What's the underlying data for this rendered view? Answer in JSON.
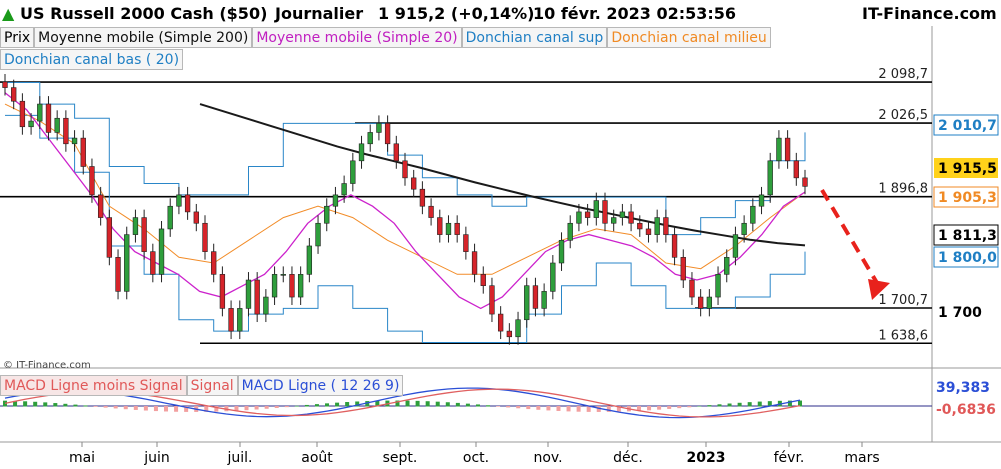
{
  "header": {
    "instrument": "US Russell 2000 Cash ($50)",
    "timeframe": "Journalier",
    "quote": "1 915,2 (+0,14%)",
    "datetime": "10 févr. 2023 02:53:56",
    "brand": "IT-Finance.com"
  },
  "legend": {
    "price": "Prix",
    "sma200": "Moyenne mobile (Simple 200)",
    "sma20": "Moyenne mobile (Simple 20)",
    "dc_sup": "Donchian canal sup",
    "dc_mid": "Donchian canal milieu",
    "dc_low": "Donchian canal bas ( 20)"
  },
  "macd_legend": {
    "hist": "MACD Ligne moins Signal",
    "signal": "Signal",
    "line": "MACD Ligne ( 12 26 9)"
  },
  "copyright": "© IT-Finance.com",
  "colors": {
    "up": "#2e9e3c",
    "down": "#d6242a",
    "sma200": "#1a1a1a",
    "sma20": "#cc22cc",
    "dc_band": "#2a86c8",
    "dc_mid": "#f28c28",
    "arrow": "#e8221c",
    "macd_line": "#2b4fd6",
    "macd_signal": "#e06060"
  },
  "chart_data": {
    "type": "candlestick",
    "title": "US Russell 2000 Cash ($50)",
    "ylim": [
      1595,
      2120
    ],
    "x_ticks": [
      "mai",
      "juin",
      "juil.",
      "août",
      "sept.",
      "oct.",
      "nov.",
      "déc.",
      "2023",
      "févr.",
      "mars"
    ],
    "horizontal_levels": [
      {
        "value": 2098.7,
        "label": "2 098,7"
      },
      {
        "value": 2026.5,
        "label": "2 026,5"
      },
      {
        "value": 1896.8,
        "label": "1 896,8"
      },
      {
        "value": 1700.7,
        "label": "1 700,7"
      },
      {
        "value": 1638.6,
        "label": "1 638,6"
      }
    ],
    "price_badges": [
      {
        "value": 2010.7,
        "label": "2 010,7",
        "series": "Donchian canal sup"
      },
      {
        "value": 1915.5,
        "label": "1 915,5",
        "series": "Prix"
      },
      {
        "value": 1905.3,
        "label": "1 905,3",
        "series": "Donchian canal milieu"
      },
      {
        "value": 1811.3,
        "label": "1 811,3",
        "series": "Moyenne mobile (Simple 200)"
      },
      {
        "value": 1800.0,
        "label": "1 800,0",
        "series": "Donchian canal bas"
      },
      {
        "value": 1700,
        "label": "1 700",
        "series": "axis"
      }
    ],
    "series": [
      {
        "name": "Prix",
        "values": [
          2089,
          2065,
          2020,
          2030,
          2060,
          2010,
          2035,
          1990,
          2000,
          1950,
          1900,
          1860,
          1790,
          1730,
          1830,
          1860,
          1800,
          1760,
          1840,
          1880,
          1900,
          1870,
          1850,
          1800,
          1760,
          1700,
          1660,
          1700,
          1750,
          1690,
          1720,
          1760,
          1760,
          1720,
          1760,
          1810,
          1850,
          1880,
          1900,
          1920,
          1960,
          1990,
          2010,
          2026,
          1990,
          1960,
          1930,
          1910,
          1880,
          1860,
          1830,
          1850,
          1830,
          1800,
          1760,
          1740,
          1690,
          1660,
          1650,
          1680,
          1740,
          1700,
          1730,
          1780,
          1820,
          1850,
          1870,
          1860,
          1890,
          1850,
          1860,
          1870,
          1850,
          1840,
          1830,
          1860,
          1830,
          1790,
          1750,
          1720,
          1700,
          1720,
          1760,
          1790,
          1830,
          1850,
          1880,
          1900,
          1960,
          2000,
          1960,
          1930,
          1915
        ]
      },
      {
        "name": "Moyenne mobile (Simple 200)",
        "values": [
          2060,
          2045,
          2030,
          2015,
          2000,
          1985,
          1972,
          1960,
          1948,
          1935,
          1922,
          1910,
          1898,
          1887,
          1876,
          1866,
          1856,
          1846,
          1837,
          1829,
          1821,
          1815,
          1811
        ]
      },
      {
        "name": "Moyenne mobile (Simple 20)",
        "values": [
          2080,
          2050,
          2000,
          1950,
          1900,
          1840,
          1800,
          1780,
          1760,
          1730,
          1720,
          1740,
          1760,
          1800,
          1850,
          1880,
          1900,
          1880,
          1850,
          1800,
          1760,
          1720,
          1700,
          1720,
          1760,
          1800,
          1820,
          1830,
          1820,
          1810,
          1790,
          1760,
          1750,
          1760,
          1790,
          1830,
          1880,
          1905
        ]
      },
      {
        "name": "Donchian canal sup",
        "values": [
          2098,
          2060,
          2035,
          1950,
          1920,
          1900,
          1900,
          1950,
          2026,
          2026,
          2026,
          1970,
          1930,
          1900,
          1880,
          1896,
          1896,
          1896,
          1896,
          1830,
          1860,
          1890,
          1960,
          2010
        ]
      },
      {
        "name": "Donchian canal milieu",
        "values": [
          2060,
          2030,
          1990,
          1880,
          1840,
          1790,
          1780,
          1820,
          1860,
          1880,
          1860,
          1820,
          1790,
          1760,
          1760,
          1790,
          1820,
          1840,
          1830,
          1780,
          1770,
          1810,
          1860,
          1905
        ]
      },
      {
        "name": "Donchian canal bas",
        "values": [
          2040,
          2000,
          1940,
          1810,
          1760,
          1680,
          1660,
          1690,
          1700,
          1740,
          1700,
          1660,
          1640,
          1640,
          1640,
          1690,
          1740,
          1780,
          1740,
          1700,
          1700,
          1720,
          1760,
          1800
        ]
      }
    ],
    "macd": {
      "line_value": "39,383",
      "hist_value": "-0,6836"
    }
  }
}
